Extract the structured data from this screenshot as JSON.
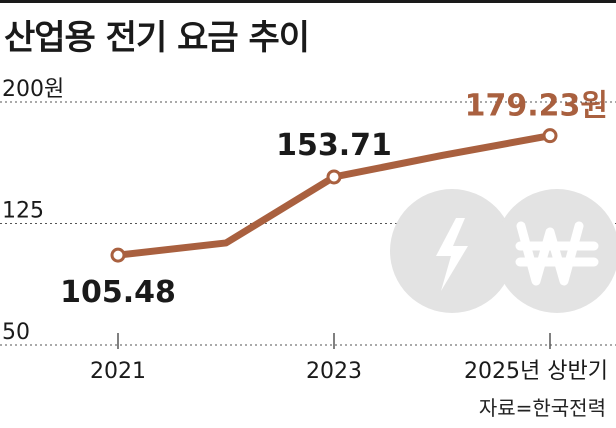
{
  "title": "산업용 전기 요금 추이",
  "source": "자료=한국전력",
  "colors": {
    "line": "#a9603f",
    "highlight_label": "#a9603f",
    "text": "#1a1a1a",
    "icon_circle": "#e3e3e3",
    "grid": "#555555"
  },
  "icons": [
    "lightning-icon",
    "won-icon"
  ],
  "chart_data": {
    "type": "line",
    "title": "산업용 전기 요금 추이",
    "ylim": [
      50,
      200
    ],
    "y_ticks": [
      {
        "value": 200,
        "label": "200원"
      },
      {
        "value": 125,
        "label": "125"
      },
      {
        "value": 50,
        "label": "50"
      }
    ],
    "x_ticks": [
      {
        "x": 0,
        "label": "2021"
      },
      {
        "x": 2,
        "label": "2023"
      },
      {
        "x": 4,
        "label": "2025년 상반기"
      }
    ],
    "series": [
      {
        "points": [
          {
            "x": 0,
            "y": 105.48,
            "label": "105.48",
            "marker": true,
            "label_pos": "below"
          },
          {
            "x": 1,
            "y": 113,
            "label": "",
            "marker": false
          },
          {
            "x": 2,
            "y": 153.71,
            "label": "153.71",
            "marker": true,
            "label_pos": "above"
          },
          {
            "x": 3,
            "y": 167,
            "label": "",
            "marker": false
          },
          {
            "x": 4,
            "y": 179.23,
            "label": "179.23원",
            "marker": true,
            "label_pos": "above",
            "highlight": true
          }
        ]
      }
    ],
    "grid": true
  }
}
